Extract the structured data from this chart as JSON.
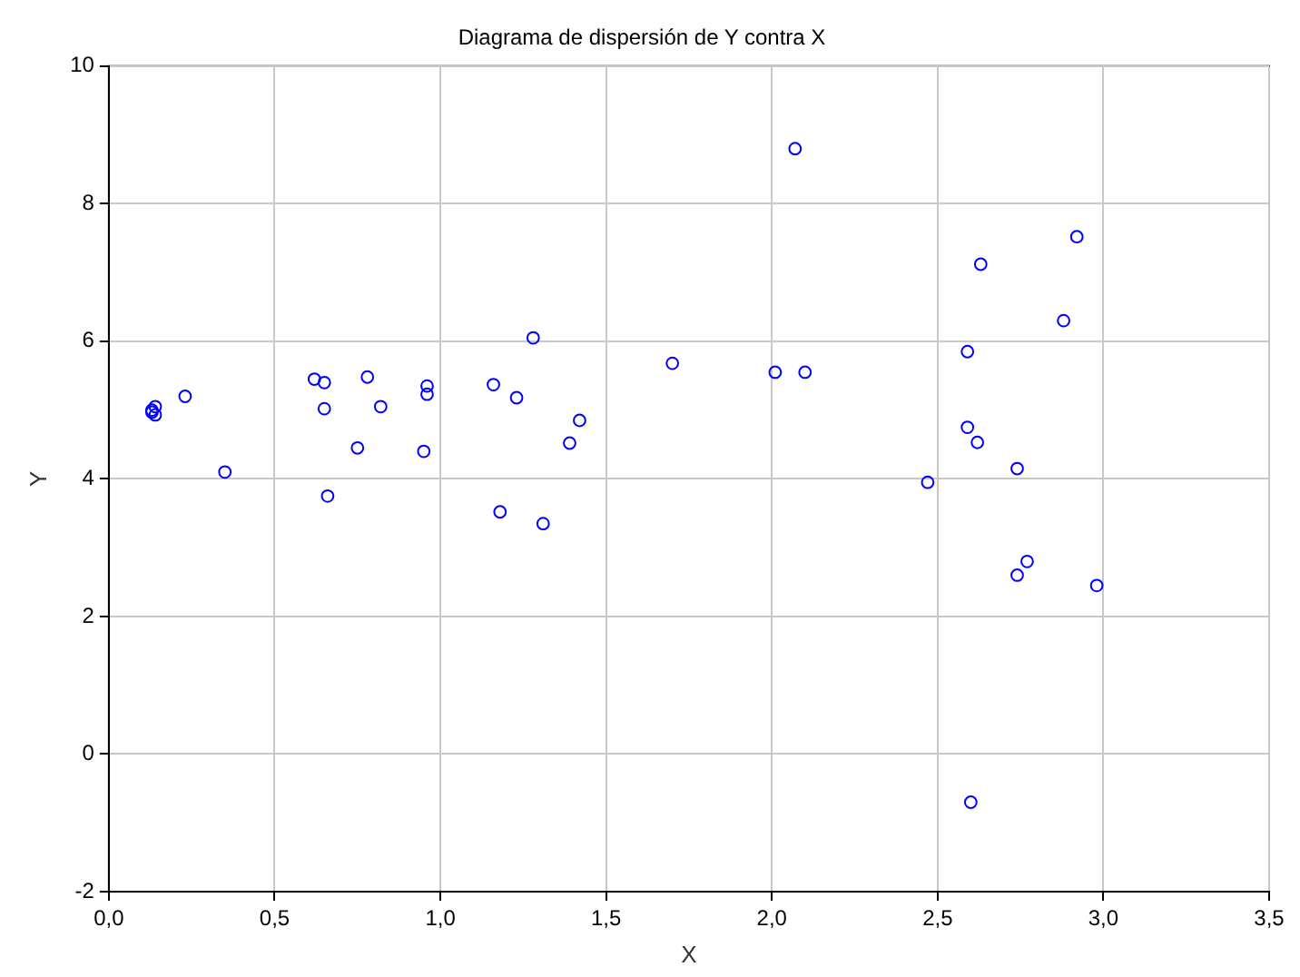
{
  "chart_data": {
    "type": "scatter",
    "title": "Diagrama de dispersión de Y contra X",
    "xlabel": "X",
    "ylabel": "Y",
    "xlim": [
      0,
      3.5
    ],
    "ylim": [
      -2,
      10
    ],
    "xticks": [
      {
        "value": 0,
        "label": "0,0"
      },
      {
        "value": 0.5,
        "label": "0,5"
      },
      {
        "value": 1,
        "label": "1,0"
      },
      {
        "value": 1.5,
        "label": "1,5"
      },
      {
        "value": 2,
        "label": "2,0"
      },
      {
        "value": 2.5,
        "label": "2,5"
      },
      {
        "value": 3,
        "label": "3,0"
      },
      {
        "value": 3.5,
        "label": "3,5"
      }
    ],
    "yticks": [
      -2,
      0,
      2,
      4,
      6,
      8,
      10
    ],
    "grid": true,
    "marker": "circle",
    "series": [
      {
        "color": "#0000ff",
        "x": [
          0.13,
          0.14,
          0.14,
          0.13,
          0.23,
          0.35,
          0.62,
          0.65,
          0.65,
          0.66,
          0.75,
          0.78,
          0.82,
          0.95,
          0.96,
          0.96,
          1.16,
          1.18,
          1.23,
          1.28,
          1.31,
          1.39,
          1.42,
          1.7,
          2.01,
          2.07,
          2.1,
          2.47,
          2.59,
          2.59,
          2.6,
          2.62,
          2.63,
          2.74,
          2.74,
          2.77,
          2.88,
          2.92,
          2.98
        ],
        "values": [
          5.0,
          5.05,
          4.93,
          4.97,
          5.2,
          4.1,
          5.45,
          5.4,
          5.02,
          3.75,
          4.45,
          5.48,
          5.05,
          4.4,
          5.35,
          5.23,
          5.37,
          3.52,
          5.18,
          6.05,
          3.35,
          4.52,
          4.85,
          5.68,
          5.55,
          8.8,
          5.55,
          3.95,
          5.85,
          4.75,
          -0.7,
          4.53,
          7.12,
          4.15,
          2.6,
          2.8,
          6.3,
          7.52,
          2.45
        ]
      }
    ]
  }
}
